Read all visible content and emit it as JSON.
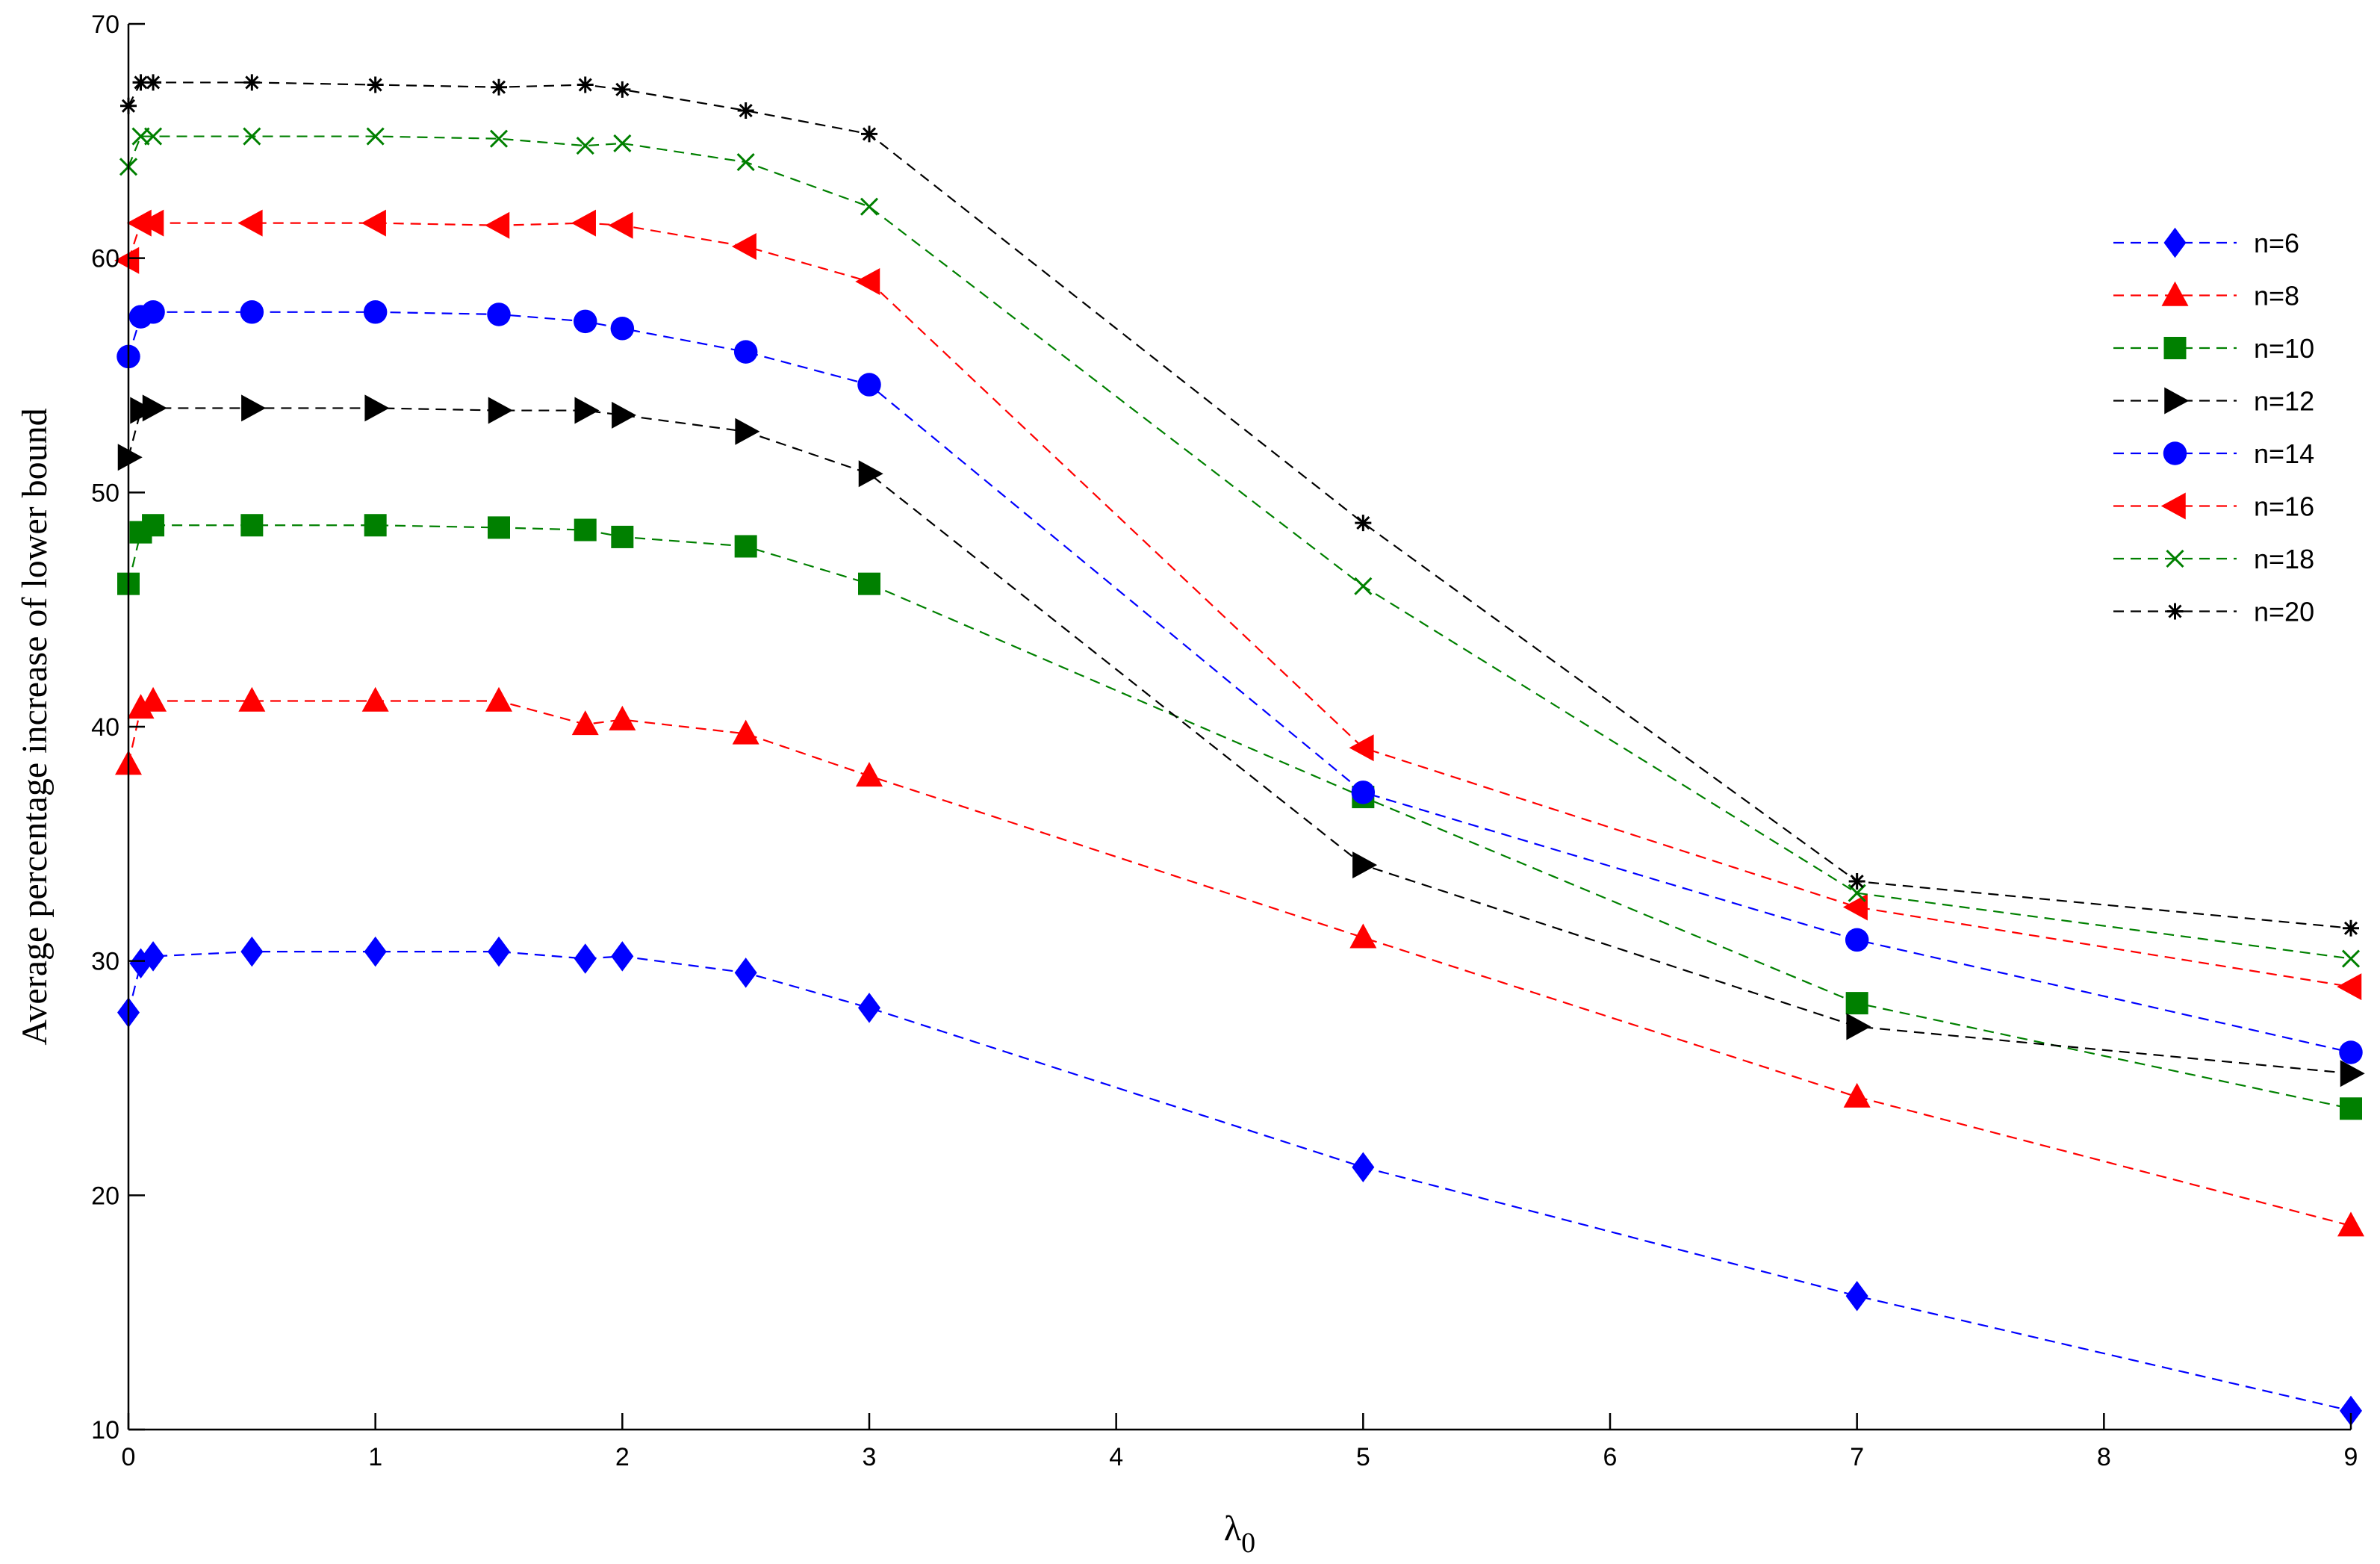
{
  "chart_data": {
    "type": "line",
    "xlabel": "λ",
    "xlabel_sub": "0",
    "ylabel": "Average percentage increase of lower bound",
    "xlim": [
      0,
      9
    ],
    "ylim": [
      10,
      70
    ],
    "xticks": [
      0,
      1,
      2,
      3,
      4,
      5,
      6,
      7,
      8,
      9
    ],
    "yticks": [
      10,
      20,
      30,
      40,
      50,
      60,
      70
    ],
    "grid": false,
    "legend_position": "top-right",
    "line_style": "dashed",
    "x": [
      0,
      0.05,
      0.1,
      0.5,
      1,
      1.5,
      1.85,
      2,
      2.5,
      3,
      5,
      7,
      9
    ],
    "series": [
      {
        "name": "n=6",
        "color": "#0000ff",
        "marker": "diamond",
        "values": [
          27.8,
          29.9,
          30.2,
          30.4,
          30.4,
          30.4,
          30.1,
          30.2,
          29.5,
          28.0,
          21.2,
          15.7,
          10.8
        ]
      },
      {
        "name": "n=8",
        "color": "#ff0000",
        "marker": "triangle-up",
        "values": [
          38.4,
          40.8,
          41.1,
          41.1,
          41.1,
          41.1,
          40.1,
          40.3,
          39.7,
          37.9,
          31.0,
          24.2,
          18.7
        ]
      },
      {
        "name": "n=10",
        "color": "#008000",
        "marker": "square",
        "values": [
          46.1,
          48.3,
          48.6,
          48.6,
          48.6,
          48.5,
          48.4,
          48.1,
          47.7,
          46.1,
          37.0,
          28.2,
          23.7
        ]
      },
      {
        "name": "n=12",
        "color": "#000000",
        "marker": "triangle-right",
        "values": [
          51.5,
          53.5,
          53.6,
          53.6,
          53.6,
          53.5,
          53.5,
          53.3,
          52.6,
          50.8,
          34.1,
          27.2,
          25.2
        ]
      },
      {
        "name": "n=14",
        "color": "#0000ff",
        "marker": "circle",
        "values": [
          55.8,
          57.5,
          57.7,
          57.7,
          57.7,
          57.6,
          57.3,
          57.0,
          56.0,
          54.6,
          37.2,
          30.9,
          26.1
        ]
      },
      {
        "name": "n=16",
        "color": "#ff0000",
        "marker": "triangle-left",
        "values": [
          59.9,
          61.5,
          61.5,
          61.5,
          61.5,
          61.4,
          61.5,
          61.4,
          60.5,
          59.0,
          39.1,
          32.3,
          28.9
        ]
      },
      {
        "name": "n=18",
        "color": "#008000",
        "marker": "x",
        "values": [
          63.9,
          65.2,
          65.2,
          65.2,
          65.2,
          65.1,
          64.8,
          64.9,
          64.1,
          62.2,
          46.0,
          32.9,
          30.1
        ]
      },
      {
        "name": "n=20",
        "color": "#000000",
        "marker": "star",
        "values": [
          66.5,
          67.5,
          67.5,
          67.5,
          67.4,
          67.3,
          67.4,
          67.2,
          66.3,
          65.3,
          48.7,
          33.4,
          31.4
        ]
      }
    ]
  }
}
